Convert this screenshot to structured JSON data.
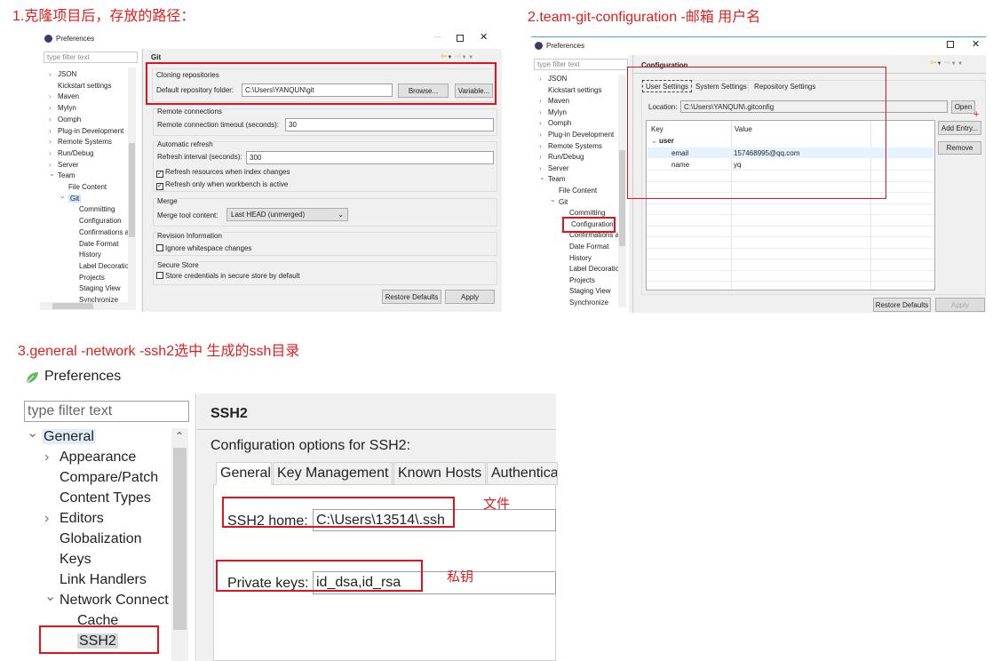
{
  "notes": {
    "step1": "1.克隆项目后，存放的路径：",
    "step2": "2.team-git-configuration -邮箱 用户名",
    "step3": "3.general -network -ssh2选中 生成的ssh目录",
    "file_label": "文件",
    "private_key_label": "私钥"
  },
  "colors": {
    "annotation": "#e0121c",
    "selection": "#cce8ff"
  },
  "panel1": {
    "window_title": "Preferences",
    "filter_placeholder": "type filter text",
    "tree": [
      {
        "label": "JSON",
        "level": 0,
        "chevron": "right"
      },
      {
        "label": "Kickstart settings",
        "level": 0
      },
      {
        "label": "Maven",
        "level": 0,
        "chevron": "right"
      },
      {
        "label": "Mylyn",
        "level": 0,
        "chevron": "right"
      },
      {
        "label": "Oomph",
        "level": 0,
        "chevron": "right"
      },
      {
        "label": "Plug-in Development",
        "level": 0,
        "chevron": "right"
      },
      {
        "label": "Remote Systems",
        "level": 0,
        "chevron": "right"
      },
      {
        "label": "Run/Debug",
        "level": 0,
        "chevron": "right"
      },
      {
        "label": "Server",
        "level": 0,
        "chevron": "right"
      },
      {
        "label": "Team",
        "level": 0,
        "chevron": "down"
      },
      {
        "label": "File Content",
        "level": 1
      },
      {
        "label": "Git",
        "level": 1,
        "chevron": "down",
        "selected": true
      },
      {
        "label": "Committing",
        "level": 2
      },
      {
        "label": "Configuration",
        "level": 2
      },
      {
        "label": "Confirmations a",
        "level": 2
      },
      {
        "label": "Date Format",
        "level": 2
      },
      {
        "label": "History",
        "level": 2
      },
      {
        "label": "Label Decoratio",
        "level": 2
      },
      {
        "label": "Projects",
        "level": 2
      },
      {
        "label": "Staging View",
        "level": 2
      },
      {
        "label": "Synchronize",
        "level": 2
      }
    ],
    "page_title": "Git",
    "cloning": {
      "heading": "Cloning repositories",
      "label": "Default repository folder:",
      "value": "C:\\Users\\YANQUN\\git",
      "browse": "Browse...",
      "variable": "Variable..."
    },
    "remote": {
      "heading": "Remote connections",
      "label": "Remote connection timeout (seconds):",
      "value": "30"
    },
    "refresh": {
      "heading": "Automatic refresh",
      "label": "Refresh interval (seconds):",
      "value": "300",
      "check1": "Refresh resources when index changes",
      "check1_checked": true,
      "check2": "Refresh only when workbench is active",
      "check2_checked": true
    },
    "merge": {
      "heading": "Merge",
      "label": "Merge tool content:",
      "value": "Last HEAD (unmerged)"
    },
    "revision": {
      "heading": "Revision Information",
      "check": "Ignore whitespace changes",
      "checked": false
    },
    "secure": {
      "heading": "Secure Store",
      "check": "Store credentials in secure store by default",
      "checked": false
    },
    "restore": "Restore Defaults",
    "apply": "Apply"
  },
  "panel2": {
    "window_title": "Preferences",
    "filter_placeholder": "type filter text",
    "tree": [
      {
        "label": "JSON",
        "level": 0,
        "chevron": "right"
      },
      {
        "label": "Kickstart settings",
        "level": 0
      },
      {
        "label": "Maven",
        "level": 0,
        "chevron": "right"
      },
      {
        "label": "Mylyn",
        "level": 0,
        "chevron": "right"
      },
      {
        "label": "Oomph",
        "level": 0,
        "chevron": "right"
      },
      {
        "label": "Plug-in Development",
        "level": 0,
        "chevron": "right"
      },
      {
        "label": "Remote Systems",
        "level": 0,
        "chevron": "right"
      },
      {
        "label": "Run/Debug",
        "level": 0,
        "chevron": "right"
      },
      {
        "label": "Server",
        "level": 0,
        "chevron": "right"
      },
      {
        "label": "Team",
        "level": 0,
        "chevron": "down"
      },
      {
        "label": "File Content",
        "level": 1
      },
      {
        "label": "Git",
        "level": 1,
        "chevron": "down"
      },
      {
        "label": "Committing",
        "level": 2
      },
      {
        "label": "Configuration",
        "level": 2,
        "selected": true
      },
      {
        "label": "Confirmations a",
        "level": 2
      },
      {
        "label": "Date Format",
        "level": 2
      },
      {
        "label": "History",
        "level": 2
      },
      {
        "label": "Label Decoratio",
        "level": 2
      },
      {
        "label": "Projects",
        "level": 2
      },
      {
        "label": "Staging View",
        "level": 2
      },
      {
        "label": "Synchronize",
        "level": 2
      }
    ],
    "page_title": "Configuration",
    "tabs": [
      "User Settings",
      "System Settings",
      "Repository Settings"
    ],
    "location_label": "Location:",
    "location_value": "C:\\Users\\YANQUN\\.gitconfig",
    "open": "Open",
    "columns": [
      "Key",
      "Value"
    ],
    "section": "user",
    "rows": [
      {
        "key": "email",
        "value": "157468995@qq.com"
      },
      {
        "key": "name",
        "value": "yq"
      }
    ],
    "add_entry": "Add Entry...",
    "remove": "Remove",
    "restore": "Restore Defaults",
    "apply": "Apply"
  },
  "panel3": {
    "window_title": "Preferences",
    "filter_placeholder": "type filter text",
    "tree": [
      {
        "label": "General",
        "level": 0,
        "chevron": "down",
        "selected": true
      },
      {
        "label": "Appearance",
        "level": 1,
        "chevron": "right"
      },
      {
        "label": "Compare/Patch",
        "level": 1
      },
      {
        "label": "Content Types",
        "level": 1
      },
      {
        "label": "Editors",
        "level": 1,
        "chevron": "right"
      },
      {
        "label": "Globalization",
        "level": 1
      },
      {
        "label": "Keys",
        "level": 1
      },
      {
        "label": "Link Handlers",
        "level": 1
      },
      {
        "label": "Network Connect",
        "level": 1,
        "chevron": "down"
      },
      {
        "label": "Cache",
        "level": 2
      },
      {
        "label": "SSH2",
        "level": 2,
        "selected": true
      }
    ],
    "page_title": "SSH2",
    "description": "Configuration options for SSH2:",
    "tabs": [
      "General",
      "Key Management",
      "Known Hosts",
      "Authenticat"
    ],
    "ssh2_home_label": "SSH2 home:",
    "ssh2_home_value": "C:\\Users\\13514\\.ssh",
    "private_keys_label": "Private keys:",
    "private_keys_value": "id_dsa,id_rsa"
  }
}
